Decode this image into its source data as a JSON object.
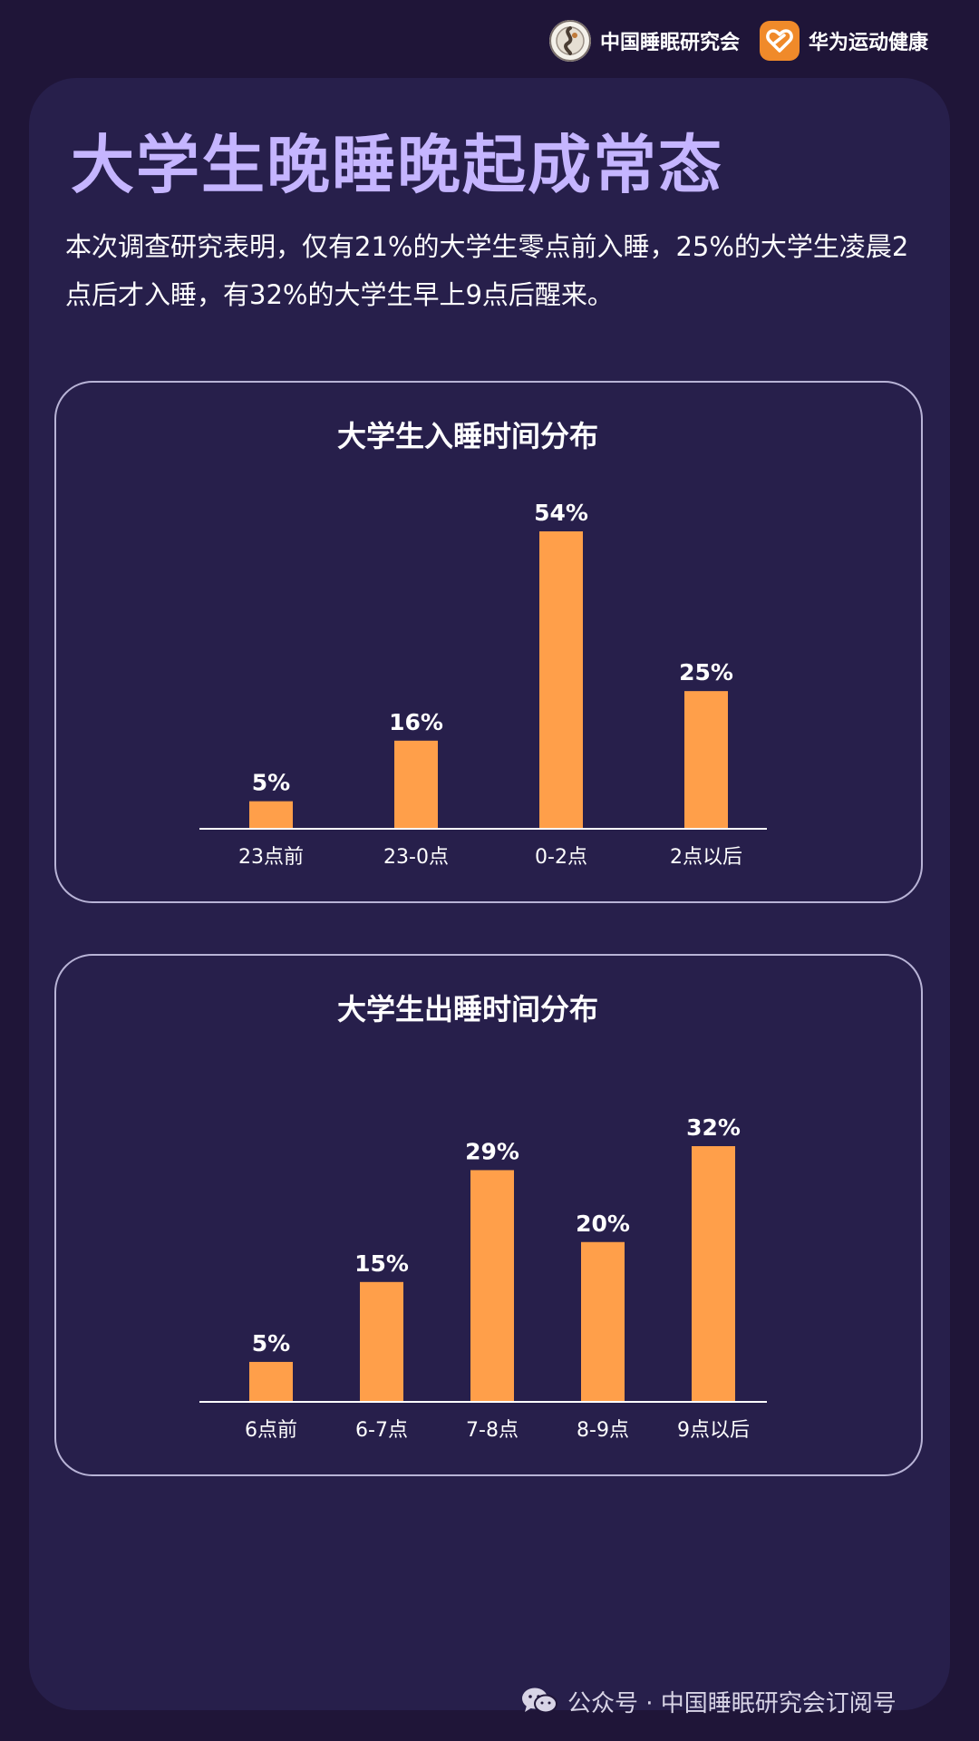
{
  "header": {
    "org_name": "中国睡眠研究会",
    "partner_name": "华为运动健康"
  },
  "title": "大学生晚睡晚起成常态",
  "intro": "本次调查研究表明，仅有21%的大学生零点前入睡，25%的大学生凌晨2点后才入睡，有32%的大学生早上9点后醒来。",
  "colors": {
    "bar": "#ff9f4a",
    "title": "#c5b5ff",
    "background": "#1f1538",
    "panel": "#271f4b"
  },
  "chart_data": [
    {
      "type": "bar",
      "title": "大学生入睡时间分布",
      "categories": [
        "23点前",
        "23-0点",
        "0-2点",
        "2点以后"
      ],
      "values": [
        5,
        16,
        54,
        25
      ],
      "value_labels": [
        "5%",
        "16%",
        "54%",
        "25%"
      ],
      "ylim": [
        0,
        54
      ],
      "grid": false
    },
    {
      "type": "bar",
      "title": "大学生出睡时间分布",
      "categories": [
        "6点前",
        "6-7点",
        "7-8点",
        "8-9点",
        "9点以后"
      ],
      "values": [
        5,
        15,
        29,
        20,
        32
      ],
      "value_labels": [
        "5%",
        "15%",
        "29%",
        "20%",
        "32%"
      ],
      "ylim": [
        0,
        32
      ],
      "grid": false
    }
  ],
  "footer": {
    "icon": "wechat-icon",
    "text": "公众号 · 中国睡眠研究会订阅号"
  }
}
